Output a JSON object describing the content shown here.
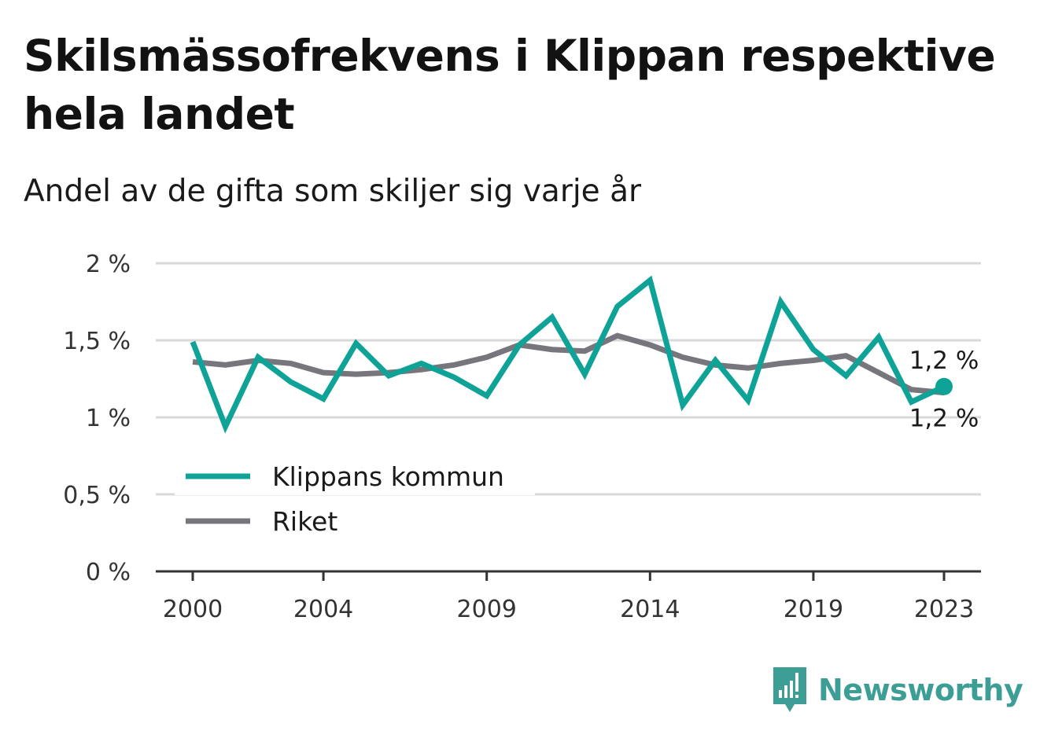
{
  "title": "Skilsmässofrekvens i Klippan respektive hela landet",
  "subtitle": "Andel av de gifta som skiljer sig varje år",
  "brand": "Newsworthy",
  "colors": {
    "klippan": "#0fa398",
    "riket": "#77767c",
    "grid": "#d9d9d9",
    "axis": "#333333"
  },
  "chart_data": {
    "type": "line",
    "x": [
      2000,
      2001,
      2002,
      2003,
      2004,
      2005,
      2006,
      2007,
      2008,
      2009,
      2010,
      2011,
      2012,
      2013,
      2014,
      2015,
      2016,
      2017,
      2018,
      2019,
      2020,
      2021,
      2022,
      2023
    ],
    "x_ticks": [
      2000,
      2004,
      2009,
      2014,
      2019,
      2023
    ],
    "y_ticks": [
      0,
      0.5,
      1,
      1.5,
      2
    ],
    "y_tick_labels": [
      "0 %",
      "0,5 %",
      "1 %",
      "1,5 %",
      "2 %"
    ],
    "ylim": [
      0,
      2
    ],
    "grid": true,
    "legend_position": "bottom-left",
    "series": [
      {
        "name": "Klippans kommun",
        "color_key": "klippan",
        "values": [
          1.49,
          0.94,
          1.39,
          1.23,
          1.12,
          1.48,
          1.27,
          1.35,
          1.26,
          1.14,
          1.47,
          1.65,
          1.28,
          1.72,
          1.89,
          1.08,
          1.37,
          1.11,
          1.75,
          1.44,
          1.27,
          1.52,
          1.1,
          1.2
        ],
        "end_label": "1,2 %"
      },
      {
        "name": "Riket",
        "color_key": "riket",
        "values": [
          1.36,
          1.34,
          1.37,
          1.35,
          1.29,
          1.28,
          1.29,
          1.31,
          1.34,
          1.39,
          1.47,
          1.44,
          1.43,
          1.53,
          1.47,
          1.39,
          1.34,
          1.32,
          1.35,
          1.37,
          1.4,
          1.29,
          1.18,
          1.16
        ],
        "end_label": "1,2 %"
      }
    ]
  }
}
